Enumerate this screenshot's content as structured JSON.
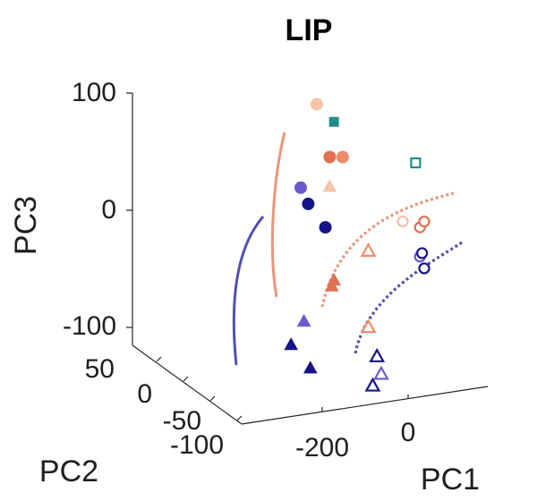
{
  "chart_data": {
    "type": "scatter",
    "title": "LIP",
    "axes": {
      "x": {
        "label": "PC1",
        "ticks": [
          "-200",
          "0"
        ]
      },
      "y": {
        "label": "PC2",
        "ticks": [
          "50",
          "0",
          "-50",
          "-100"
        ]
      },
      "z": {
        "label": "PC3",
        "ticks": [
          "100",
          "0",
          "-100"
        ]
      }
    },
    "colors": {
      "blue_light": "#6a5acd",
      "blue_dark": "#141488",
      "orange_light": "#f5c4a8",
      "orange_mid": "#f08a6a",
      "orange_dark": "#e07050",
      "teal": "#1f8f8a",
      "blue_curve": "#5050b0",
      "orange_curve": "#e8967a"
    },
    "series": [
      {
        "name": "filled-circles",
        "marker": "circle",
        "filled": true,
        "points": [
          {
            "pc1": -200,
            "pc2": -10,
            "pc3": 95,
            "color": "orange_light"
          },
          {
            "pc1": -170,
            "pc2": -10,
            "pc3": 50,
            "color": "orange_dark"
          },
          {
            "pc1": -140,
            "pc2": -10,
            "pc3": 50,
            "color": "orange_mid"
          },
          {
            "pc1": -220,
            "pc2": -10,
            "pc3": 10,
            "color": "blue_dark"
          },
          {
            "pc1": -180,
            "pc2": -10,
            "pc3": -10,
            "color": "blue_dark"
          },
          {
            "pc1": -250,
            "pc2": 0,
            "pc3": 20,
            "color": "blue_light"
          }
        ]
      },
      {
        "name": "filled-triangles",
        "marker": "triangle",
        "filled": true,
        "points": [
          {
            "pc1": -170,
            "pc2": -10,
            "pc3": 25,
            "color": "orange_light"
          },
          {
            "pc1": -165,
            "pc2": -10,
            "pc3": -60,
            "color": "orange_dark"
          },
          {
            "pc1": -160,
            "pc2": -10,
            "pc3": -55,
            "color": "orange_dark"
          },
          {
            "pc1": -230,
            "pc2": -10,
            "pc3": -90,
            "color": "blue_light"
          },
          {
            "pc1": -260,
            "pc2": -10,
            "pc3": -110,
            "color": "blue_dark"
          },
          {
            "pc1": -215,
            "pc2": -10,
            "pc3": -130,
            "color": "blue_dark"
          }
        ]
      },
      {
        "name": "filled-squares",
        "marker": "square",
        "filled": true,
        "points": [
          {
            "pc1": -160,
            "pc2": -10,
            "pc3": 80,
            "color": "teal"
          }
        ]
      },
      {
        "name": "open-circles",
        "marker": "circle",
        "filled": false,
        "points": [
          {
            "pc1": 0,
            "pc2": -10,
            "pc3": -5,
            "color": "orange_light"
          },
          {
            "pc1": 40,
            "pc2": -10,
            "pc3": -10,
            "color": "orange_dark"
          },
          {
            "pc1": 50,
            "pc2": -10,
            "pc3": -5,
            "color": "orange_dark"
          },
          {
            "pc1": 40,
            "pc2": -10,
            "pc3": -35,
            "color": "blue_light"
          },
          {
            "pc1": 45,
            "pc2": -10,
            "pc3": -32,
            "color": "blue_dark"
          },
          {
            "pc1": 50,
            "pc2": -10,
            "pc3": -45,
            "color": "blue_dark"
          }
        ]
      },
      {
        "name": "open-triangles",
        "marker": "triangle",
        "filled": false,
        "points": [
          {
            "pc1": -80,
            "pc2": -10,
            "pc3": -30,
            "color": "orange_mid"
          },
          {
            "pc1": -80,
            "pc2": -10,
            "pc3": -95,
            "color": "orange_mid"
          },
          {
            "pc1": -60,
            "pc2": -10,
            "pc3": -120,
            "color": "blue_dark"
          },
          {
            "pc1": -50,
            "pc2": -10,
            "pc3": -135,
            "color": "blue_light"
          },
          {
            "pc1": -70,
            "pc2": -10,
            "pc3": -145,
            "color": "blue_dark"
          }
        ]
      },
      {
        "name": "open-squares",
        "marker": "square",
        "filled": false,
        "points": [
          {
            "pc1": 30,
            "pc2": -10,
            "pc3": 45,
            "color": "teal"
          }
        ]
      }
    ],
    "trajectories": [
      {
        "name": "orange-solid",
        "style": "solid",
        "color": "orange_curve"
      },
      {
        "name": "blue-solid",
        "style": "solid",
        "color": "blue_curve"
      },
      {
        "name": "orange-dotted",
        "style": "dotted",
        "color": "orange_curve"
      },
      {
        "name": "blue-dotted",
        "style": "dotted",
        "color": "blue_curve"
      }
    ]
  }
}
